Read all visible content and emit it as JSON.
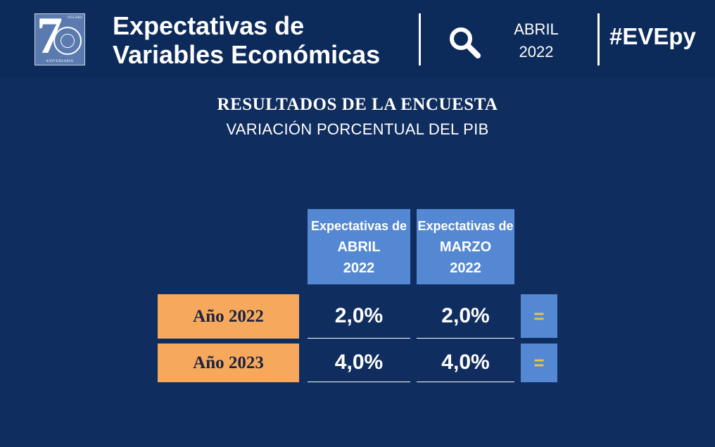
{
  "header": {
    "logo_number": "7",
    "logo_years": "1952-2022",
    "logo_label": "ANIVERSARIO",
    "title_line1": "Expectativas de",
    "title_line2": "Variables Económicas",
    "month": "ABRIL",
    "year": "2022",
    "hashtag": "#EVEpy",
    "search_icon": "search-icon"
  },
  "section": {
    "title": "RESULTADOS DE LA ENCUESTA",
    "subtitle": "VARIACIÓN PORCENTUAL DEL PIB"
  },
  "table": {
    "columns": [
      {
        "line1": "Expectativas de",
        "line2": "ABRIL",
        "line3": "2022"
      },
      {
        "line1": "Expectativas de",
        "line2": "MARZO",
        "line3": "2022"
      }
    ],
    "rows": [
      {
        "label": "Año 2022",
        "april": "2,0%",
        "march": "2,0%",
        "trend": "="
      },
      {
        "label": "Año 2023",
        "april": "4,0%",
        "march": "4,0%",
        "trend": "="
      }
    ]
  },
  "colors": {
    "background": "#0f2d5e",
    "header_blue": "#5588d3",
    "row_label_orange": "#f6a95c",
    "trend_symbol": "#e8c84a"
  }
}
